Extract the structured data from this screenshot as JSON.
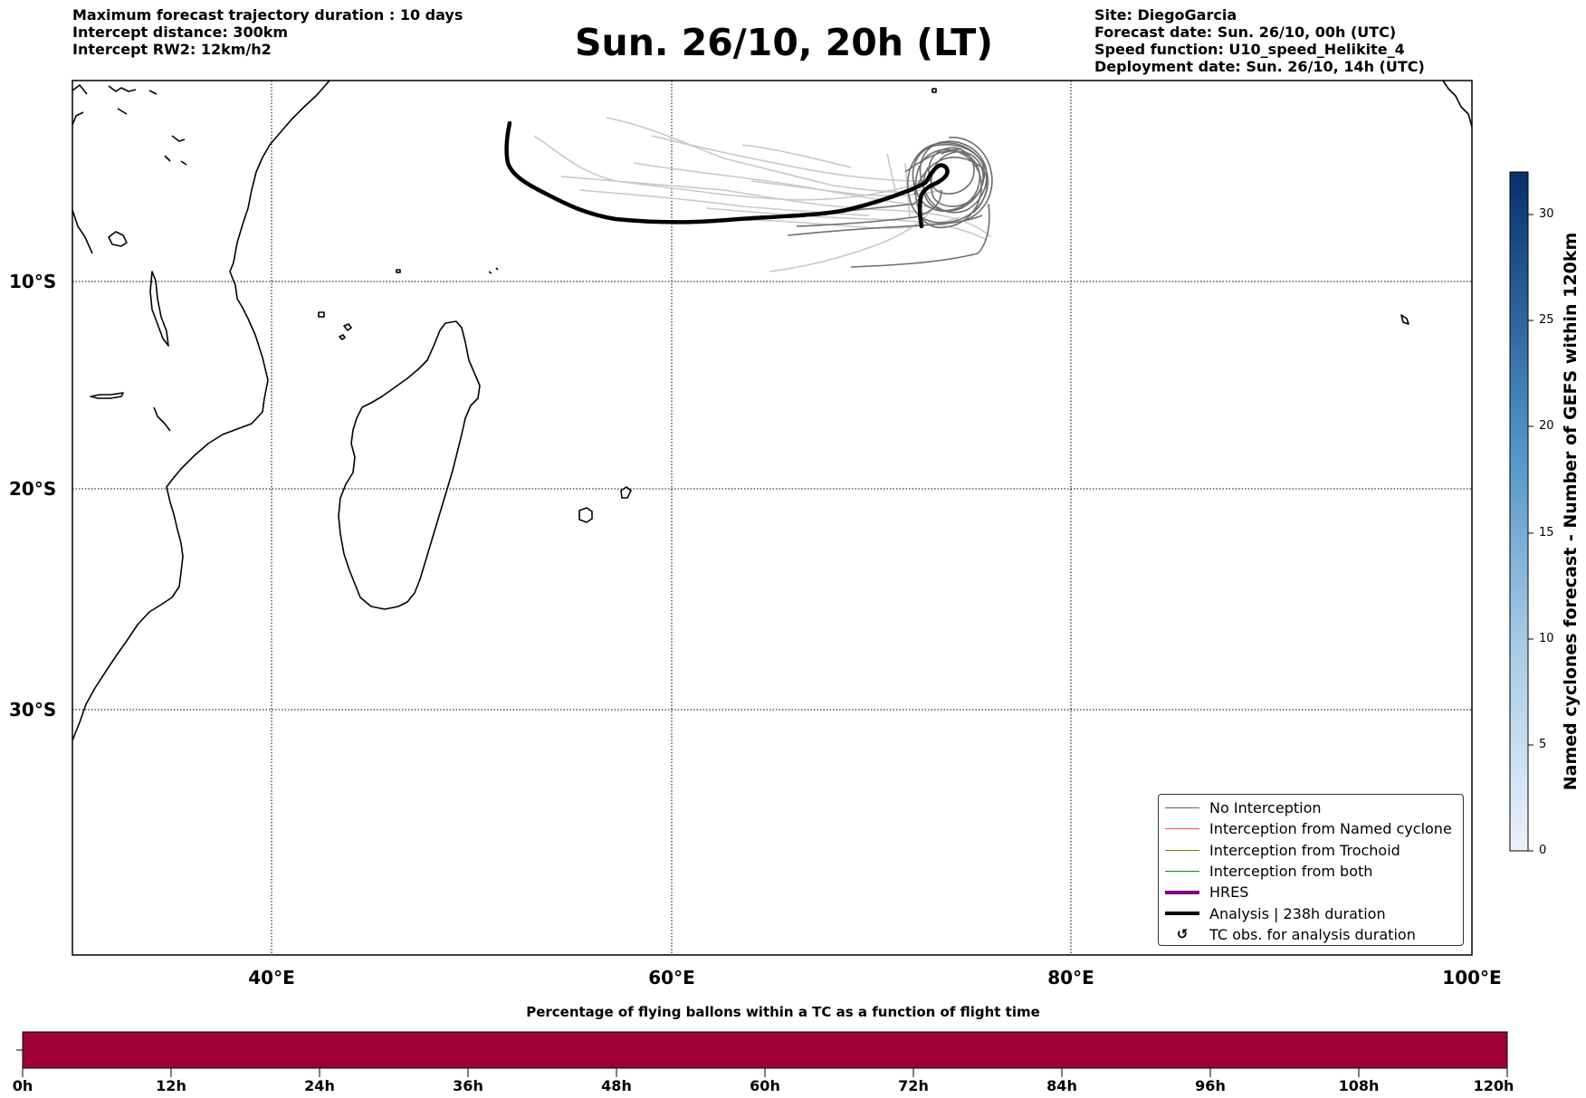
{
  "header_left": {
    "line1": "Maximum forecast trajectory duration : 10 days",
    "line2": "Intercept distance: 300km",
    "line3": "Intercept RW2: 12km/h2"
  },
  "title": "Sun. 26/10, 20h (LT)",
  "header_right": {
    "line1": "Site: DiegoGarcia",
    "line2": "Forecast date: Sun. 26/10, 00h (UTC)",
    "line3": "Speed function: U10_speed_Helikite_4",
    "line4": "Deployment date: Sun. 26/10, 14h (UTC)"
  },
  "map": {
    "lat_labels": [
      "10°S",
      "20°S",
      "30°S"
    ],
    "lon_labels": [
      "40°E",
      "60°E",
      "80°E",
      "100°E"
    ],
    "grid": "dotted",
    "extent": {
      "lon": [
        30,
        100
      ],
      "lat": [
        -42,
        0
      ]
    }
  },
  "legend": {
    "position": "lower-right",
    "entries": [
      {
        "label": "No Interception",
        "color": "#666666",
        "style": "thin-line"
      },
      {
        "label": "Interception from Named cyclone",
        "color": "#ff5522",
        "style": "thin-line"
      },
      {
        "label": "Interception from Trochoid",
        "color": "#808000",
        "style": "thin-line"
      },
      {
        "label": "Interception from both",
        "color": "#009900",
        "style": "thin-line"
      },
      {
        "label": "HRES",
        "color": "#800080",
        "style": "thick-line"
      },
      {
        "label": "Analysis | 238h duration",
        "color": "#000000",
        "style": "thick-line"
      },
      {
        "label": "TC obs. for analysis duration",
        "color": "#000000",
        "style": "symbol",
        "symbol": "↺"
      }
    ]
  },
  "colorbar": {
    "label": "Named cyclones forecast - Number of GEFS within 120km",
    "ticks": [
      "0",
      "5",
      "10",
      "15",
      "20",
      "25",
      "30"
    ],
    "min": 0,
    "max": 32,
    "color_low": "#dde8f5",
    "color_high": "#08306b"
  },
  "percentage_bar": {
    "title": "Percentage of flying ballons within a TC as a function of flight time",
    "ticks": [
      "0h",
      "12h",
      "24h",
      "36h",
      "48h",
      "60h",
      "72h",
      "84h",
      "96h",
      "108h",
      "120h"
    ],
    "fill_color": "#9e0038"
  }
}
